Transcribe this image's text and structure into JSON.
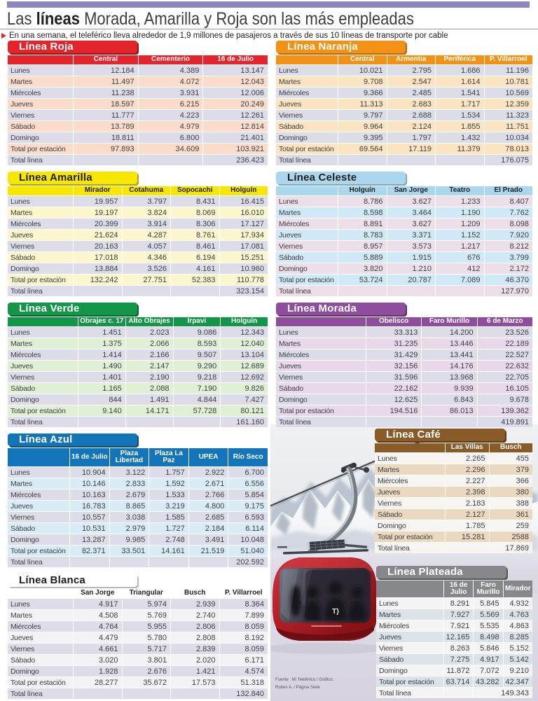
{
  "header": {
    "title_prefix": "Las ",
    "title_bold": "líneas",
    "title_rest": " Morada, Amarilla y Roja son las más empleadas",
    "subtitle": "En una semana, el teleférico lleva alrededor de 1,9 millones de pasajeros a través de sus 10 líneas de transporte por cable"
  },
  "row_labels": [
    "Lunes",
    "Martes",
    "Miércoles",
    "Jueves",
    "Viernes",
    "Sábado",
    "Domingo",
    "Total por estación",
    "Total línea"
  ],
  "tables": [
    {
      "id": "roja",
      "title": "Línea Roja",
      "colors": {
        "main": "#e3242b",
        "shadow": "#97161b",
        "title_text": "#ffffff",
        "header_text": "#ffffff",
        "odd": "#dddce9",
        "even": "#fbdcc9"
      },
      "columns": [
        "Central",
        "Cementerio",
        "16 de Julio"
      ],
      "rows": [
        [
          "12.184",
          "4.389",
          "13.147"
        ],
        [
          "11.497",
          "4.072",
          "12.043"
        ],
        [
          "11.238",
          "3.931",
          "12.006"
        ],
        [
          "18.597",
          "6.215",
          "20.249"
        ],
        [
          "11.777",
          "4.223",
          "12.261"
        ],
        [
          "13.789",
          "4.979",
          "12.814"
        ],
        [
          "18.811",
          "6.800",
          "21.401"
        ]
      ],
      "total_station": [
        "97.893",
        "34.609",
        "103.921"
      ],
      "total_line": "236.423"
    },
    {
      "id": "naranja",
      "title": "Línea Naranja",
      "colors": {
        "main": "#f39114",
        "shadow": "#b56a10",
        "title_text": "#ffffff",
        "header_text": "#ffffff",
        "odd": "#dddce9",
        "even": "#fde4c0"
      },
      "columns": [
        "Central",
        "Armentia",
        "Periférica",
        "P. Villarroel"
      ],
      "rows": [
        [
          "10.021",
          "2.795",
          "1.686",
          "11.196"
        ],
        [
          "9.708",
          "2.547",
          "1.614",
          "10.781"
        ],
        [
          "9.366",
          "2.485",
          "1.541",
          "10.569"
        ],
        [
          "11.313",
          "2.683",
          "1.717",
          "12.359"
        ],
        [
          "9.797",
          "2.688",
          "1.534",
          "11.323"
        ],
        [
          "9.964",
          "2.124",
          "1.855",
          "11.751"
        ],
        [
          "9.395",
          "1.797",
          "1.432",
          "10.034"
        ]
      ],
      "total_station": [
        "69.564",
        "17.119",
        "11.379",
        "78.013"
      ],
      "total_line": "176.075"
    },
    {
      "id": "amarilla",
      "title": "Línea Amarilla",
      "colors": {
        "main": "#f7e600",
        "shadow": "#b1a513",
        "title_text": "#1e1e1e",
        "header_text": "#1e1e1e",
        "odd": "#dddce9",
        "even": "#fbf6cb"
      },
      "columns": [
        "Mirador",
        "Cotahuma",
        "Sopocachi",
        "Holguín"
      ],
      "rows": [
        [
          "19.957",
          "3.797",
          "8.431",
          "16.415"
        ],
        [
          "19.197",
          "3.824",
          "8.069",
          "16.010"
        ],
        [
          "20.399",
          "3.914",
          "8.306",
          "17.127"
        ],
        [
          "21.624",
          "4.287",
          "8.761",
          "17.934"
        ],
        [
          "20.163",
          "4.057",
          "8.461",
          "17.081"
        ],
        [
          "17.018",
          "4.346",
          "6.194",
          "15.251"
        ],
        [
          "13.884",
          "3.526",
          "4.161",
          "10.960"
        ]
      ],
      "total_station": [
        "132.242",
        "27.751",
        "52.383",
        "110.778"
      ],
      "total_line": "323.154"
    },
    {
      "id": "celeste",
      "title": "Línea Celeste",
      "colors": {
        "main": "#aad7ee",
        "shadow": "#83a9bf",
        "title_text": "#1e1e1e",
        "header_text": "#1e1e1e",
        "odd": "#ecdfe9",
        "even": "#cfe9f6"
      },
      "columns": [
        "Holguín",
        "San Jorge",
        "Teatro",
        "El Prado"
      ],
      "rows": [
        [
          "8.786",
          "3.627",
          "1.233",
          "8.407"
        ],
        [
          "8.598",
          "3.464",
          "1.190",
          "7.762"
        ],
        [
          "8.891",
          "3.627",
          "1.209",
          "8.098"
        ],
        [
          "8.783",
          "3.371",
          "1.152",
          "7.920"
        ],
        [
          "8.957",
          "3.573",
          "1.217",
          "8.212"
        ],
        [
          "5.889",
          "1.915",
          "676",
          "3.799"
        ],
        [
          "3.820",
          "1.210",
          "412",
          "2.172"
        ]
      ],
      "total_station": [
        "53.724",
        "20.787",
        "7.089",
        "46.370"
      ],
      "total_line": "127.970"
    },
    {
      "id": "verde",
      "title": "Línea Verde",
      "colors": {
        "main": "#139648",
        "shadow": "#0b6331",
        "title_text": "#ffffff",
        "header_text": "#ffffff",
        "odd": "#dddce9",
        "even": "#dff0d5"
      },
      "columns": [
        "Obrajes c. 17",
        "Alto Obrajes",
        "Irpavi",
        "Holguín"
      ],
      "rows": [
        [
          "1.451",
          "2.023",
          "9.086",
          "12.343"
        ],
        [
          "1.375",
          "2.066",
          "8.593",
          "12.040"
        ],
        [
          "1.414",
          "2.166",
          "9.507",
          "13.104"
        ],
        [
          "1.490",
          "2.147",
          "9.290",
          "12.689"
        ],
        [
          "1.401",
          "2.190",
          "9.218",
          "12.692"
        ],
        [
          "1.165",
          "2.088",
          "7.190",
          "9.826"
        ],
        [
          "844",
          "1.491",
          "4.844",
          "7.427"
        ]
      ],
      "total_station": [
        "9.140",
        "14.171",
        "57.728",
        "80.121"
      ],
      "total_line": "161.160"
    },
    {
      "id": "morada",
      "title": "Línea Morada",
      "colors": {
        "main": "#8e4d9d",
        "shadow": "#5e3268",
        "title_text": "#ffffff",
        "header_text": "#ffffff",
        "odd": "#dddce9",
        "even": "#e7d9ea"
      },
      "columns": [
        "Obelisco",
        "Faro Murillo",
        "6 de Marzo"
      ],
      "rows": [
        [
          "33.313",
          "14.200",
          "23.526"
        ],
        [
          "31.235",
          "13.446",
          "22.189"
        ],
        [
          "31.429",
          "13.441",
          "22.527"
        ],
        [
          "32.156",
          "14.176",
          "22.632"
        ],
        [
          "31.596",
          "13.968",
          "22.705"
        ],
        [
          "22.162",
          "9.939",
          "16.105"
        ],
        [
          "12.625",
          "6.843",
          "9.678"
        ]
      ],
      "total_station": [
        "194.516",
        "86.013",
        "139.362"
      ],
      "total_line": "419.891"
    },
    {
      "id": "azul",
      "title": "Línea Azul",
      "colors": {
        "main": "#1374ba",
        "shadow": "#0c4d7e",
        "title_text": "#ffffff",
        "header_text": "#ffffff",
        "odd": "#dddce9",
        "even": "#d8ecf8"
      },
      "columns": [
        "16 de Julio",
        "Plaza Libertad",
        "Plaza La Paz",
        "UPEA",
        "Río Seco"
      ],
      "rows": [
        [
          "10.904",
          "3.122",
          "1.757",
          "2.922",
          "6.700"
        ],
        [
          "10.146",
          "2.833",
          "1.592",
          "2.671",
          "6.556"
        ],
        [
          "10.163",
          "2.679",
          "1.533",
          "2.766",
          "5.854"
        ],
        [
          "16.783",
          "8.865",
          "3.219",
          "4.800",
          "9.175"
        ],
        [
          "10.557",
          "3.038",
          "1.585",
          "2.685",
          "6.593"
        ],
        [
          "10.531",
          "2.979",
          "1.727",
          "2.184",
          "6.114"
        ],
        [
          "13.287",
          "9.985",
          "2.748",
          "3.491",
          "10.048"
        ]
      ],
      "total_station": [
        "82.371",
        "33.501",
        "14.161",
        "21.519",
        "51.040"
      ],
      "total_line": "202.592"
    },
    {
      "id": "cafe",
      "title": "Línea Café",
      "colors": {
        "main": "#8a5a28",
        "shadow": "#5b3a18",
        "title_text": "#ffffff",
        "header_text": "#ffffff",
        "odd": "#f7f5f1",
        "even": "#ead9bf"
      },
      "columns": [
        "Las Villas",
        "Busch"
      ],
      "rows": [
        [
          "2.265",
          "455"
        ],
        [
          "2.296",
          "379"
        ],
        [
          "2.227",
          "366"
        ],
        [
          "2.398",
          "380"
        ],
        [
          "2.183",
          "388"
        ],
        [
          "2.127",
          "361"
        ],
        [
          "1.785",
          "259"
        ]
      ],
      "total_station": [
        "15.281",
        "2588"
      ],
      "total_line": "17.869"
    },
    {
      "id": "blanca",
      "title": "Línea Blanca",
      "colors": {
        "main": "#ffffff",
        "shadow": "#b9bac8",
        "title_text": "#1e1e1e",
        "header_text": "#1e1e1e",
        "odd": "#dddce9",
        "even": "#f3f2f6"
      },
      "columns": [
        "San Jorge",
        "Triangular",
        "Busch",
        "P. Villarroel"
      ],
      "rows": [
        [
          "4.917",
          "5.974",
          "2.939",
          "8.364"
        ],
        [
          "4.508",
          "5.769",
          "2.740",
          "7.899"
        ],
        [
          "4.764",
          "5.955",
          "2.806",
          "8.059"
        ],
        [
          "4.479",
          "5.780",
          "2.808",
          "8.192"
        ],
        [
          "4.661",
          "5.717",
          "2.839",
          "8.059"
        ],
        [
          "3.020",
          "3.801",
          "2.020",
          "6.171"
        ],
        [
          "1.928",
          "2.676",
          "1.421",
          "4.574"
        ]
      ],
      "total_station": [
        "28.277",
        "35.672",
        "17.573",
        "51.318"
      ],
      "total_line": "132.840"
    },
    {
      "id": "plateada",
      "title": "Línea Plateada",
      "colors": {
        "main": "#85878b",
        "shadow": "#56585c",
        "title_text": "#ffffff",
        "header_text": "#ffffff",
        "odd": "#f4f4f4",
        "even": "#dbe3e9"
      },
      "columns": [
        "16 de Julio",
        "Faro Murillo",
        "Mirador"
      ],
      "rows": [
        [
          "8.291",
          "5.845",
          "4.932"
        ],
        [
          "7.927",
          "5.569",
          "4.763"
        ],
        [
          "7.921",
          "5.535",
          "4.863"
        ],
        [
          "12.165",
          "8.498",
          "8.285"
        ],
        [
          "8.263",
          "5.846",
          "5.152"
        ],
        [
          "7.275",
          "4.917",
          "5.142"
        ],
        [
          "11.872",
          "7.072",
          "9.210"
        ]
      ],
      "total_station": [
        "63.714",
        "43.282",
        "42.347"
      ],
      "total_line": "149.343"
    }
  ],
  "photo": {
    "credit_line1": "Fuente : Mi Teleférico / Gráfico:",
    "credit_line2": "Ruben A. / Página Siete",
    "cabin_logo": "T)"
  }
}
